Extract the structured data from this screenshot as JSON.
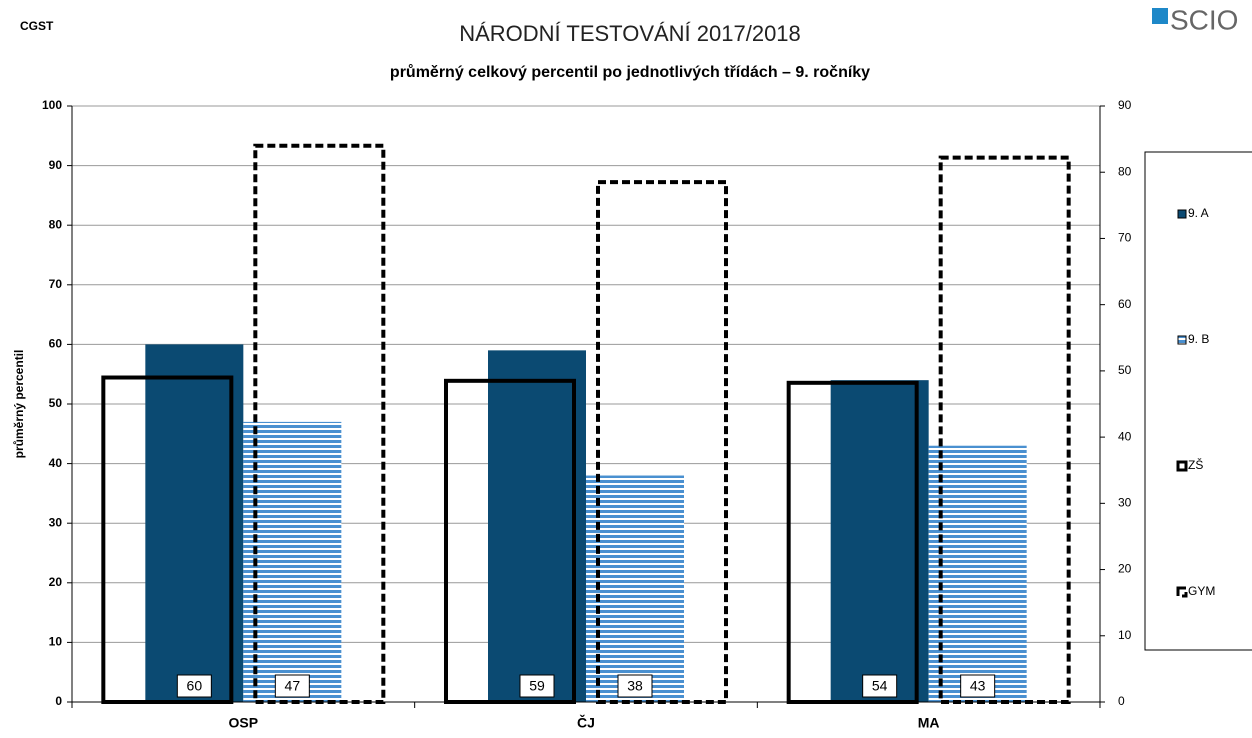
{
  "chart_data": {
    "type": "bar",
    "corner_label": "CGST",
    "logo": "SCIO",
    "title": "NÁRODNÍ TESTOVÁNÍ 2017/2018",
    "subtitle": "průměrný celkový percentil po jednotlivých třídách – 9. ročníky",
    "y_label": "průměrný percentil",
    "categories": [
      "OSP",
      "ČJ",
      "MA"
    ],
    "ylim": [
      0,
      100
    ],
    "yticks": [
      0,
      10,
      20,
      30,
      40,
      50,
      60,
      70,
      80,
      90,
      100
    ],
    "y2lim": [
      0,
      90
    ],
    "y2ticks": [
      0,
      10,
      20,
      30,
      40,
      50,
      60,
      70,
      80,
      90
    ],
    "grid": true,
    "legend": "right",
    "series": [
      {
        "name": "9. A",
        "color": "#0b4a72",
        "values": [
          60,
          59,
          54
        ]
      },
      {
        "name": "9. B",
        "color": "#4a90d0",
        "values": [
          47,
          38,
          43
        ]
      },
      {
        "name": "ZŠ",
        "color": "#000000",
        "axis": "y2",
        "values": [
          49,
          48.5,
          48.2
        ]
      },
      {
        "name": "GYM",
        "color": "#000000",
        "axis": "y2",
        "values": [
          84,
          78.5,
          82.2
        ]
      }
    ]
  }
}
